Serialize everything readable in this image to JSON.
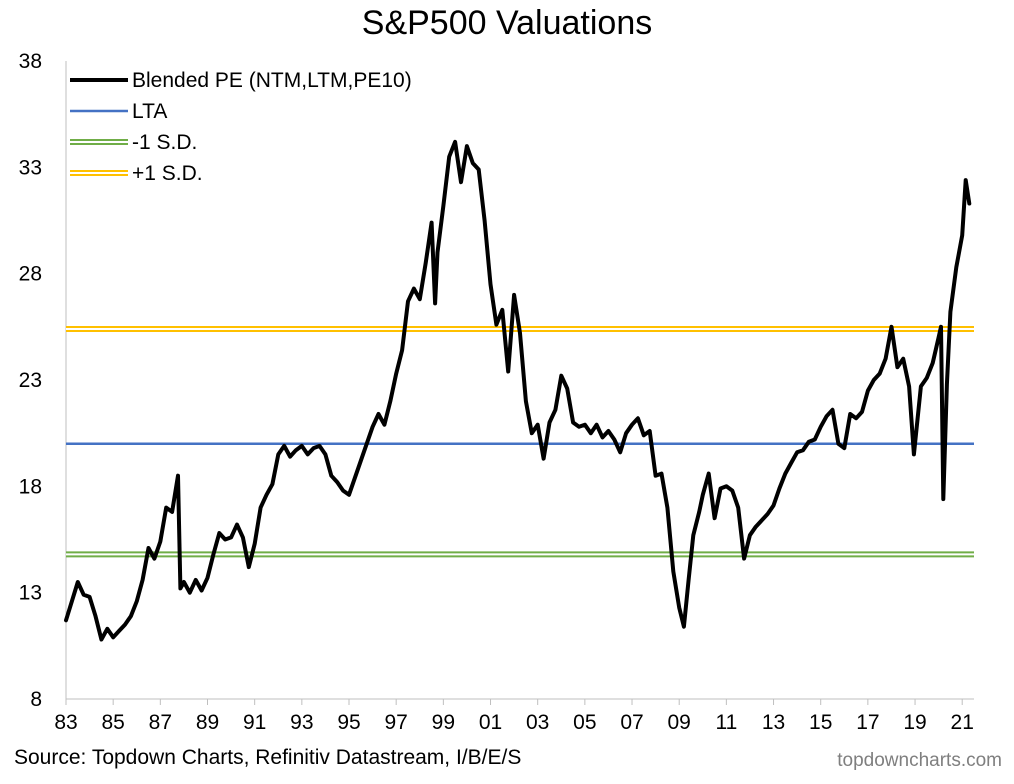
{
  "chart_data": {
    "type": "line",
    "title": "S&P500 Valuations",
    "xlabel": "",
    "ylabel": "",
    "ylim": [
      8,
      38
    ],
    "xlim": [
      1983.0,
      2021.5
    ],
    "y_ticks": [
      8,
      13,
      18,
      23,
      28,
      33,
      38
    ],
    "x_ticks": [
      {
        "year": 1983,
        "label": "83"
      },
      {
        "year": 1985,
        "label": "85"
      },
      {
        "year": 1987,
        "label": "87"
      },
      {
        "year": 1989,
        "label": "89"
      },
      {
        "year": 1991,
        "label": "91"
      },
      {
        "year": 1993,
        "label": "93"
      },
      {
        "year": 1995,
        "label": "95"
      },
      {
        "year": 1997,
        "label": "97"
      },
      {
        "year": 1999,
        "label": "99"
      },
      {
        "year": 2001,
        "label": "01"
      },
      {
        "year": 2003,
        "label": "03"
      },
      {
        "year": 2005,
        "label": "05"
      },
      {
        "year": 2007,
        "label": "07"
      },
      {
        "year": 2009,
        "label": "09"
      },
      {
        "year": 2011,
        "label": "11"
      },
      {
        "year": 2013,
        "label": "13"
      },
      {
        "year": 2015,
        "label": "15"
      },
      {
        "year": 2017,
        "label": "17"
      },
      {
        "year": 2019,
        "label": "19"
      },
      {
        "year": 2021,
        "label": "21"
      }
    ],
    "grid": false,
    "legend_position": "top-left",
    "series": [
      {
        "name": "Blended PE (NTM,LTM,PE10)",
        "color": "#000000",
        "style": "thick-line",
        "points": [
          [
            1983.0,
            11.7
          ],
          [
            1983.25,
            12.6
          ],
          [
            1983.5,
            13.5
          ],
          [
            1983.75,
            12.9
          ],
          [
            1984.0,
            12.8
          ],
          [
            1984.25,
            11.9
          ],
          [
            1984.5,
            10.8
          ],
          [
            1984.75,
            11.3
          ],
          [
            1985.0,
            10.9
          ],
          [
            1985.25,
            11.2
          ],
          [
            1985.5,
            11.5
          ],
          [
            1985.75,
            11.9
          ],
          [
            1986.0,
            12.6
          ],
          [
            1986.25,
            13.6
          ],
          [
            1986.5,
            15.1
          ],
          [
            1986.75,
            14.6
          ],
          [
            1987.0,
            15.4
          ],
          [
            1987.25,
            17.0
          ],
          [
            1987.5,
            16.8
          ],
          [
            1987.75,
            18.5
          ],
          [
            1987.85,
            13.2
          ],
          [
            1988.0,
            13.5
          ],
          [
            1988.25,
            13.0
          ],
          [
            1988.5,
            13.6
          ],
          [
            1988.75,
            13.1
          ],
          [
            1989.0,
            13.7
          ],
          [
            1989.25,
            14.8
          ],
          [
            1989.5,
            15.8
          ],
          [
            1989.75,
            15.5
          ],
          [
            1990.0,
            15.6
          ],
          [
            1990.25,
            16.2
          ],
          [
            1990.5,
            15.6
          ],
          [
            1990.75,
            14.2
          ],
          [
            1991.0,
            15.3
          ],
          [
            1991.25,
            17.0
          ],
          [
            1991.5,
            17.6
          ],
          [
            1991.75,
            18.1
          ],
          [
            1992.0,
            19.5
          ],
          [
            1992.25,
            19.9
          ],
          [
            1992.5,
            19.4
          ],
          [
            1992.75,
            19.7
          ],
          [
            1993.0,
            19.9
          ],
          [
            1993.25,
            19.5
          ],
          [
            1993.5,
            19.8
          ],
          [
            1993.75,
            19.9
          ],
          [
            1994.0,
            19.5
          ],
          [
            1994.25,
            18.5
          ],
          [
            1994.5,
            18.2
          ],
          [
            1994.75,
            17.8
          ],
          [
            1995.0,
            17.6
          ],
          [
            1995.25,
            18.4
          ],
          [
            1995.5,
            19.2
          ],
          [
            1995.75,
            20.0
          ],
          [
            1996.0,
            20.8
          ],
          [
            1996.25,
            21.4
          ],
          [
            1996.5,
            20.9
          ],
          [
            1996.75,
            22.0
          ],
          [
            1997.0,
            23.3
          ],
          [
            1997.25,
            24.4
          ],
          [
            1997.5,
            26.7
          ],
          [
            1997.75,
            27.3
          ],
          [
            1998.0,
            26.8
          ],
          [
            1998.25,
            28.5
          ],
          [
            1998.5,
            30.4
          ],
          [
            1998.65,
            26.6
          ],
          [
            1998.75,
            29.0
          ],
          [
            1999.0,
            31.2
          ],
          [
            1999.25,
            33.5
          ],
          [
            1999.5,
            34.2
          ],
          [
            1999.75,
            32.3
          ],
          [
            2000.0,
            34.0
          ],
          [
            2000.25,
            33.2
          ],
          [
            2000.5,
            32.9
          ],
          [
            2000.75,
            30.5
          ],
          [
            2001.0,
            27.5
          ],
          [
            2001.25,
            25.6
          ],
          [
            2001.5,
            26.3
          ],
          [
            2001.75,
            23.4
          ],
          [
            2002.0,
            27.0
          ],
          [
            2002.25,
            25.2
          ],
          [
            2002.5,
            22.0
          ],
          [
            2002.75,
            20.5
          ],
          [
            2003.0,
            20.9
          ],
          [
            2003.25,
            19.3
          ],
          [
            2003.5,
            21.0
          ],
          [
            2003.75,
            21.6
          ],
          [
            2004.0,
            23.2
          ],
          [
            2004.25,
            22.6
          ],
          [
            2004.5,
            21.0
          ],
          [
            2004.75,
            20.8
          ],
          [
            2005.0,
            20.9
          ],
          [
            2005.25,
            20.5
          ],
          [
            2005.5,
            20.9
          ],
          [
            2005.75,
            20.3
          ],
          [
            2006.0,
            20.6
          ],
          [
            2006.25,
            20.2
          ],
          [
            2006.5,
            19.6
          ],
          [
            2006.75,
            20.5
          ],
          [
            2007.0,
            20.9
          ],
          [
            2007.25,
            21.2
          ],
          [
            2007.5,
            20.4
          ],
          [
            2007.75,
            20.6
          ],
          [
            2008.0,
            18.5
          ],
          [
            2008.25,
            18.6
          ],
          [
            2008.5,
            17.0
          ],
          [
            2008.75,
            14.0
          ],
          [
            2009.0,
            12.3
          ],
          [
            2009.2,
            11.4
          ],
          [
            2009.4,
            13.6
          ],
          [
            2009.6,
            15.7
          ],
          [
            2009.85,
            16.8
          ],
          [
            2010.0,
            17.6
          ],
          [
            2010.25,
            18.6
          ],
          [
            2010.5,
            16.5
          ],
          [
            2010.75,
            17.9
          ],
          [
            2011.0,
            18.0
          ],
          [
            2011.25,
            17.8
          ],
          [
            2011.5,
            17.0
          ],
          [
            2011.75,
            14.6
          ],
          [
            2012.0,
            15.7
          ],
          [
            2012.25,
            16.1
          ],
          [
            2012.5,
            16.4
          ],
          [
            2012.75,
            16.7
          ],
          [
            2013.0,
            17.1
          ],
          [
            2013.25,
            17.9
          ],
          [
            2013.5,
            18.6
          ],
          [
            2013.75,
            19.1
          ],
          [
            2014.0,
            19.6
          ],
          [
            2014.25,
            19.7
          ],
          [
            2014.5,
            20.1
          ],
          [
            2014.75,
            20.2
          ],
          [
            2015.0,
            20.8
          ],
          [
            2015.25,
            21.3
          ],
          [
            2015.5,
            21.6
          ],
          [
            2015.75,
            20.0
          ],
          [
            2016.0,
            19.8
          ],
          [
            2016.25,
            21.4
          ],
          [
            2016.5,
            21.2
          ],
          [
            2016.75,
            21.5
          ],
          [
            2017.0,
            22.5
          ],
          [
            2017.25,
            23.0
          ],
          [
            2017.5,
            23.3
          ],
          [
            2017.75,
            24.0
          ],
          [
            2018.0,
            25.5
          ],
          [
            2018.25,
            23.6
          ],
          [
            2018.5,
            24.0
          ],
          [
            2018.75,
            22.7
          ],
          [
            2018.95,
            19.5
          ],
          [
            2019.25,
            22.7
          ],
          [
            2019.5,
            23.1
          ],
          [
            2019.75,
            23.8
          ],
          [
            2020.0,
            25.0
          ],
          [
            2020.1,
            25.5
          ],
          [
            2020.2,
            17.4
          ],
          [
            2020.35,
            22.8
          ],
          [
            2020.5,
            26.2
          ],
          [
            2020.75,
            28.3
          ],
          [
            2021.0,
            29.8
          ],
          [
            2021.15,
            32.4
          ],
          [
            2021.3,
            31.3
          ]
        ]
      },
      {
        "name": "LTA",
        "color": "#4472C4",
        "style": "line",
        "constant": 20.0
      },
      {
        "name": "-1 S.D.",
        "color": "#70AD47",
        "style": "double-line",
        "constant": 14.8
      },
      {
        "name": "+1 S.D.",
        "color": "#FFC000",
        "style": "double-line",
        "constant": 25.4
      }
    ]
  },
  "footer": {
    "source": "Source: Topdown Charts, Refinitiv Datastream, I/B/E/S",
    "watermark": "topdowncharts.com"
  }
}
